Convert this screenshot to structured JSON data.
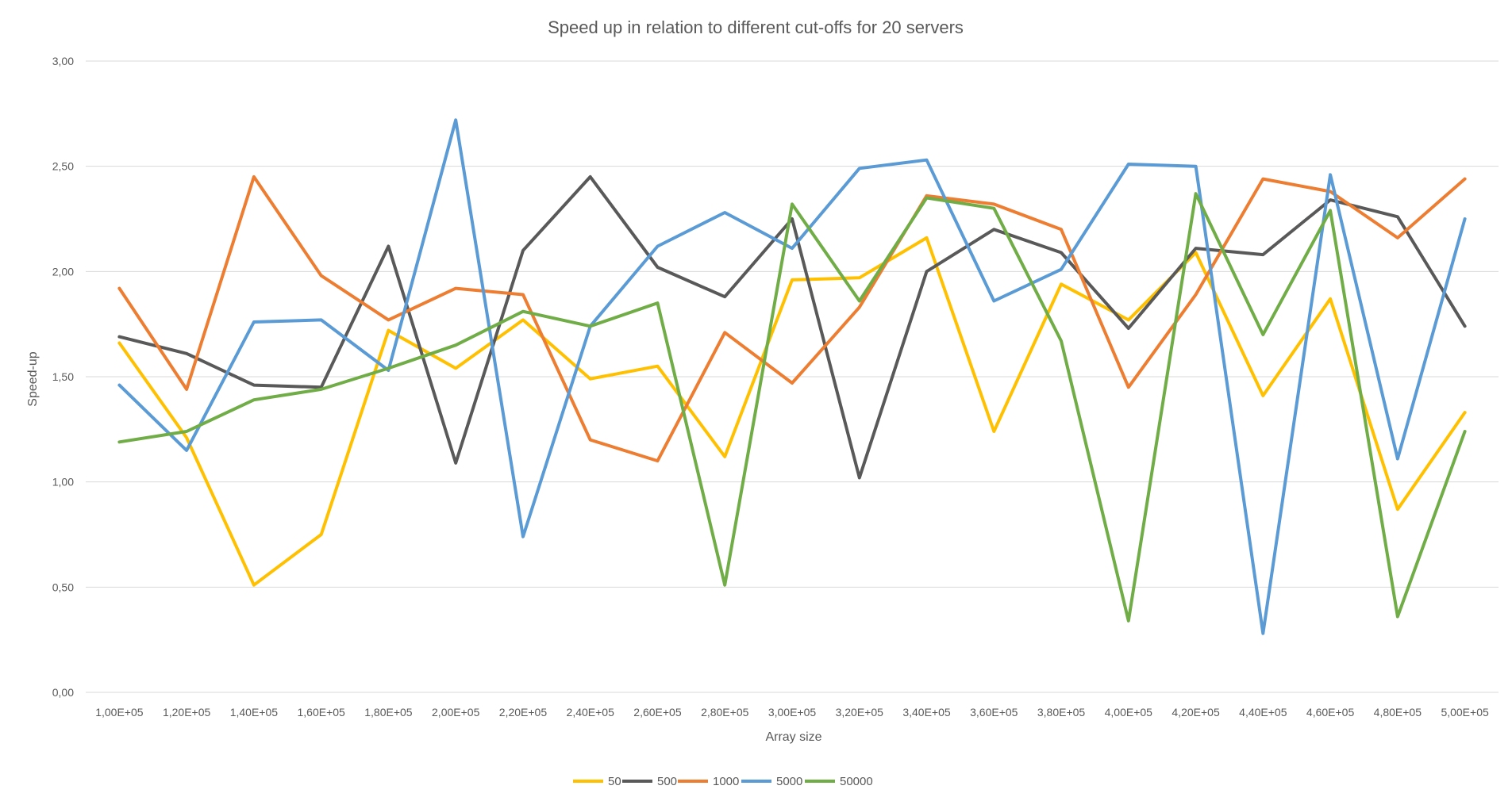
{
  "chart_data": {
    "type": "line",
    "title": "Speed up in relation to different cut-offs for 20 servers",
    "xlabel": "Array size",
    "ylabel": "Speed-up",
    "ylim": [
      0,
      3
    ],
    "yticks": [
      "0,00",
      "0,50",
      "1,00",
      "1,50",
      "2,00",
      "2,50",
      "3,00"
    ],
    "grid": true,
    "legend_position": "bottom",
    "categories": [
      "1,00E+05",
      "1,20E+05",
      "1,40E+05",
      "1,60E+05",
      "1,80E+05",
      "2,00E+05",
      "2,20E+05",
      "2,40E+05",
      "2,60E+05",
      "2,80E+05",
      "3,00E+05",
      "3,20E+05",
      "3,40E+05",
      "3,60E+05",
      "3,80E+05",
      "4,00E+05",
      "4,20E+05",
      "4,40E+05",
      "4,60E+05",
      "4,80E+05",
      "5,00E+05"
    ],
    "series": [
      {
        "name": "50",
        "color": "#FFC000",
        "values": [
          1.66,
          1.21,
          0.51,
          0.75,
          1.72,
          1.54,
          1.77,
          1.49,
          1.55,
          1.12,
          1.96,
          1.97,
          2.16,
          1.24,
          1.94,
          1.77,
          2.09,
          1.41,
          1.87,
          0.87,
          1.33
        ]
      },
      {
        "name": "500",
        "color": "#595959",
        "values": [
          1.69,
          1.61,
          1.46,
          1.45,
          2.12,
          1.09,
          2.1,
          2.45,
          2.02,
          1.88,
          2.25,
          1.02,
          2.0,
          2.2,
          2.09,
          1.73,
          2.11,
          2.08,
          2.34,
          2.26,
          1.74
        ]
      },
      {
        "name": "1000",
        "color": "#ED7D31",
        "values": [
          1.92,
          1.44,
          2.45,
          1.98,
          1.77,
          1.92,
          1.89,
          1.2,
          1.1,
          1.71,
          1.47,
          1.83,
          2.36,
          2.32,
          2.2,
          1.45,
          1.89,
          2.44,
          2.38,
          2.16,
          2.44
        ]
      },
      {
        "name": "5000",
        "color": "#5B9BD5",
        "values": [
          1.46,
          1.15,
          1.76,
          1.77,
          1.53,
          2.72,
          0.74,
          1.74,
          2.12,
          2.28,
          2.11,
          2.49,
          2.53,
          1.86,
          2.01,
          2.51,
          2.5,
          0.28,
          2.46,
          1.11,
          2.25
        ]
      },
      {
        "name": "50000",
        "color": "#70AD47",
        "values": [
          1.19,
          1.24,
          1.39,
          1.44,
          1.54,
          1.65,
          1.81,
          1.74,
          1.85,
          0.51,
          2.32,
          1.86,
          2.35,
          2.3,
          1.67,
          0.34,
          2.37,
          1.7,
          2.29,
          0.36,
          1.24
        ]
      }
    ]
  }
}
